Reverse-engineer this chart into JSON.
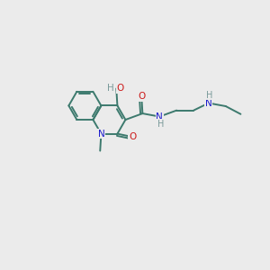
{
  "bg": "#ebebeb",
  "bc": "#3d7a6e",
  "bw": 1.4,
  "Nc": "#1a1acc",
  "Oc": "#cc1a1a",
  "Hc": "#7a9a9a",
  "fs": 7.5,
  "figsize": [
    3.0,
    3.0
  ],
  "dpi": 100,
  "xlim": [
    0,
    10
  ],
  "ylim": [
    0,
    10
  ],
  "pr": 0.78,
  "pcx": 3.6,
  "pcy": 5.8,
  "dbo": 0.1,
  "shrink": 0.13,
  "pyridone_angles": {
    "N1": 240,
    "C8a": 180,
    "C4a": 120,
    "C4": 60,
    "C3": 0,
    "C2": 300
  }
}
